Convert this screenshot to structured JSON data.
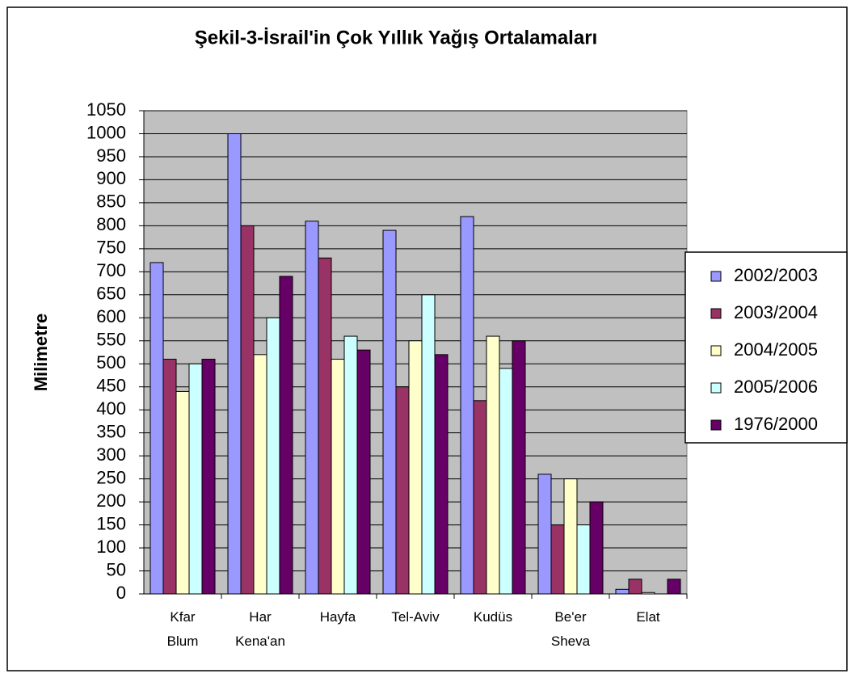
{
  "chart_data": {
    "type": "bar",
    "title": "Şekil-3-İsrail'in Çok Yıllık Yağış Ortalamaları",
    "y_label": "Milimetre",
    "categories": [
      "Kfar Blum",
      "Har Kena'an",
      "Hayfa",
      "Tel-Aviv",
      "Kudüs",
      "Be'er Sheva",
      "Elat"
    ],
    "series": [
      {
        "name": "2002/2003",
        "color": "#9999ff",
        "values": [
          720,
          1000,
          810,
          790,
          820,
          260,
          10
        ]
      },
      {
        "name": "2003/2004",
        "color": "#993366",
        "values": [
          510,
          800,
          730,
          450,
          420,
          150,
          32
        ]
      },
      {
        "name": "2004/2005",
        "color": "#ffffcc",
        "values": [
          440,
          520,
          510,
          550,
          560,
          250,
          3
        ]
      },
      {
        "name": "2005/2006",
        "color": "#ccffff",
        "values": [
          500,
          600,
          560,
          650,
          490,
          150,
          0
        ]
      },
      {
        "name": "1976/2000",
        "color": "#660066",
        "values": [
          510,
          690,
          530,
          520,
          550,
          200,
          32
        ]
      }
    ],
    "ylim": [
      0,
      1050
    ],
    "yticks": [
      0,
      50,
      100,
      150,
      200,
      250,
      300,
      350,
      400,
      450,
      500,
      550,
      600,
      650,
      700,
      750,
      800,
      850,
      900,
      950,
      1000,
      1050
    ],
    "grid": true,
    "plot_background": "#c0c0c0",
    "legend": "right"
  }
}
